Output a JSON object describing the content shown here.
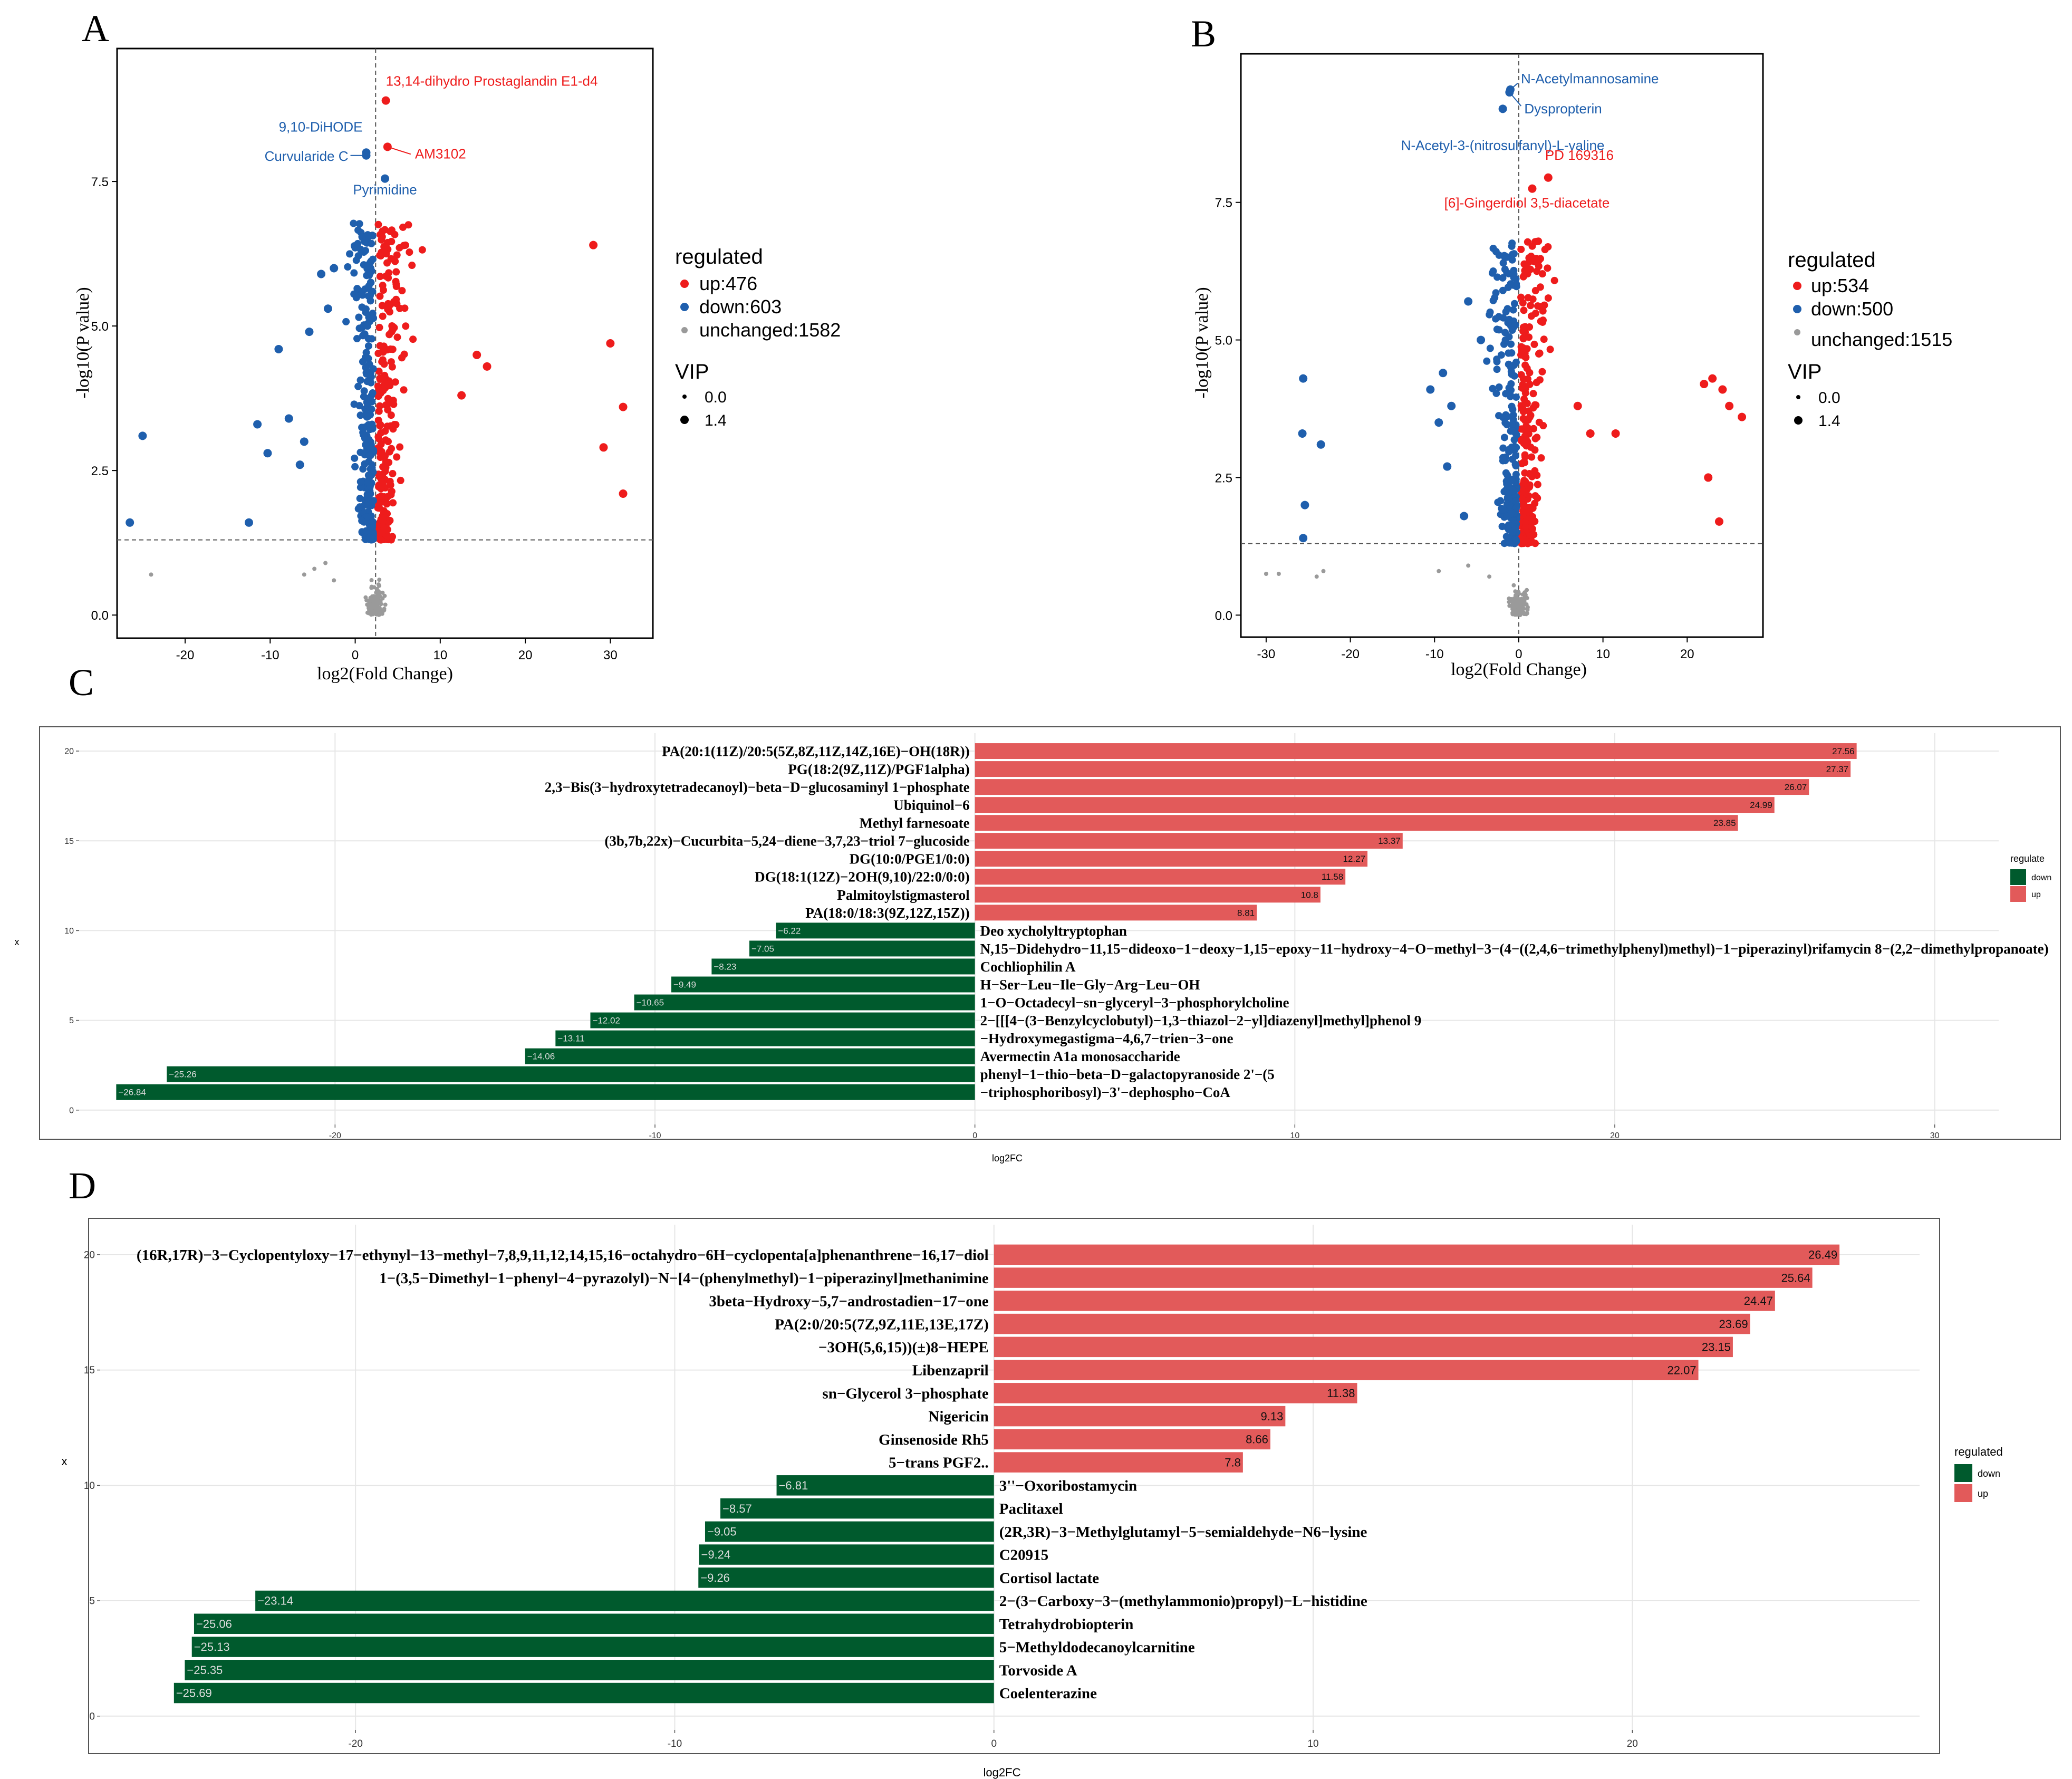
{
  "chart_data": [
    {
      "panel": "A",
      "type": "scatter",
      "xlabel": "log2(Fold Change)",
      "ylabel": "-log10(P value)",
      "xlim": [
        -28,
        35
      ],
      "ylim": [
        -0.4,
        9.8
      ],
      "xticks": [
        -20,
        -10,
        0,
        10,
        20,
        30
      ],
      "yticks": [
        0.0,
        2.5,
        5.0,
        7.5
      ],
      "ytick_labels": [
        "0.0",
        "2.5",
        "5.0",
        "7.5"
      ],
      "vline": 2.4,
      "hline": 1.3,
      "legend_title": "regulated",
      "legend_entries": [
        "up:476",
        "down:603",
        "unchanged:1582"
      ],
      "size_title": "VIP",
      "size_entries": [
        "0.0",
        "1.4"
      ],
      "colors": {
        "up": "#ee1c1c",
        "down": "#1f5fad",
        "unchanged": "#9a9a9a"
      },
      "counts": {
        "up": 476,
        "down": 603,
        "unchanged": 1582
      },
      "outliers": {
        "up": [
          [
            28.0,
            6.4
          ],
          [
            30.0,
            4.7
          ],
          [
            31.5,
            3.6
          ],
          [
            29.2,
            2.9
          ],
          [
            31.5,
            2.1
          ],
          [
            15.5,
            4.3
          ],
          [
            14.3,
            4.5
          ],
          [
            12.5,
            3.8
          ]
        ],
        "down": [
          [
            -25.0,
            3.1
          ],
          [
            -26.5,
            1.6
          ],
          [
            -12.5,
            1.6
          ],
          [
            -11.5,
            3.3
          ],
          [
            -9.0,
            4.6
          ],
          [
            -10.3,
            2.8
          ],
          [
            -7.8,
            3.4
          ],
          [
            -6.0,
            3.0
          ],
          [
            -5.4,
            4.9
          ],
          [
            -4.0,
            5.9
          ],
          [
            -3.2,
            5.3
          ],
          [
            -6.5,
            2.6
          ],
          [
            -2.5,
            6.0
          ]
        ],
        "unchanged": [
          [
            -24.0,
            0.7
          ],
          [
            -6.0,
            0.7
          ],
          [
            -4.8,
            0.8
          ],
          [
            -3.5,
            0.9
          ],
          [
            -2.5,
            0.6
          ]
        ]
      },
      "annotations": [
        {
          "label": "13,14-dihydro Prostaglandin E1-d4",
          "x": 3.6,
          "y": 8.9,
          "color": "#ee1c1c"
        },
        {
          "label": "AM3102",
          "x": 3.8,
          "y": 8.1,
          "color": "#ee1c1c"
        },
        {
          "label": "9,10-DiHODE",
          "x": 1.3,
          "y": 8.0,
          "color": "#1f5fad"
        },
        {
          "label": "Curvularide C",
          "x": 1.3,
          "y": 7.95,
          "color": "#1f5fad"
        },
        {
          "label": "Pyrimidine",
          "x": 3.5,
          "y": 7.55,
          "color": "#1f5fad"
        }
      ]
    },
    {
      "panel": "B",
      "type": "scatter",
      "xlabel": "log2(Fold Change)",
      "ylabel": "-log10(P value)",
      "xlim": [
        -33,
        29
      ],
      "ylim": [
        -0.4,
        10.2
      ],
      "xticks": [
        -30,
        -20,
        -10,
        0,
        10,
        20
      ],
      "yticks": [
        0.0,
        2.5,
        5.0,
        7.5
      ],
      "ytick_labels": [
        "0.0",
        "2.5",
        "5.0",
        "7.5"
      ],
      "vline": 0.0,
      "hline": 1.3,
      "legend_title": "regulated",
      "legend_entries": [
        "up:534",
        "down:500",
        "unchanged:1515"
      ],
      "size_title": "VIP",
      "size_entries": [
        "0.0",
        "1.4"
      ],
      "colors": {
        "up": "#ee1c1c",
        "down": "#1f5fad",
        "unchanged": "#9a9a9a"
      },
      "counts": {
        "up": 534,
        "down": 500,
        "unchanged": 1515
      },
      "outliers": {
        "up": [
          [
            22.0,
            4.2
          ],
          [
            23.0,
            4.3
          ],
          [
            24.2,
            4.1
          ],
          [
            25.0,
            3.8
          ],
          [
            26.5,
            3.6
          ],
          [
            22.5,
            2.5
          ],
          [
            23.8,
            1.7
          ],
          [
            11.5,
            3.3
          ],
          [
            8.5,
            3.3
          ],
          [
            7.0,
            3.8
          ]
        ],
        "down": [
          [
            -25.6,
            4.3
          ],
          [
            -25.7,
            3.3
          ],
          [
            -23.5,
            3.1
          ],
          [
            -25.4,
            2.0
          ],
          [
            -25.6,
            1.4
          ],
          [
            -9.0,
            4.4
          ],
          [
            -10.5,
            4.1
          ],
          [
            -9.5,
            3.5
          ],
          [
            -8.5,
            2.7
          ],
          [
            -8.0,
            3.8
          ],
          [
            -6.5,
            1.8
          ],
          [
            -6.0,
            5.7
          ],
          [
            -4.5,
            5.0
          ]
        ],
        "unchanged": [
          [
            -30.0,
            0.75
          ],
          [
            -28.5,
            0.75
          ],
          [
            -24.0,
            0.7
          ],
          [
            -23.2,
            0.8
          ],
          [
            -9.5,
            0.8
          ],
          [
            -6.0,
            0.9
          ],
          [
            -3.5,
            0.7
          ]
        ]
      },
      "annotations": [
        {
          "label": "N-Acetylmannosamine",
          "x": -1.0,
          "y": 9.55,
          "color": "#1f5fad"
        },
        {
          "label": "Dyspropterin",
          "x": -1.1,
          "y": 9.5,
          "color": "#1f5fad"
        },
        {
          "label": "N-Acetyl-3-(nitrosulfanyl)-L-valine",
          "x": -1.9,
          "y": 9.2,
          "color": "#1f5fad"
        },
        {
          "label": "PD 169316",
          "x": 3.5,
          "y": 7.95,
          "color": "#ee1c1c"
        },
        {
          "label": "[6]-Gingerdiol 3,5-diacetate",
          "x": 1.6,
          "y": 7.75,
          "color": "#ee1c1c"
        }
      ]
    },
    {
      "panel": "C",
      "type": "bar",
      "orientation": "horizontal",
      "xlabel": "log2FC",
      "ylabel": "x",
      "xlim": [
        -28,
        32
      ],
      "ylim": [
        -0.8,
        21.0
      ],
      "xticks": [
        -20,
        -10,
        0,
        10,
        20,
        30
      ],
      "yticks": [
        0,
        5,
        10,
        15,
        20
      ],
      "legend_title": "regulate",
      "legend_entries": [
        "down",
        "up"
      ],
      "colors": {
        "down": "#005a2d",
        "up": "#e25a5a"
      },
      "categories": [
        "PA(20:1(11Z)/20:5(5Z,8Z,11Z,14Z,16E)−OH(18R))",
        "PG(18:2(9Z,11Z)/PGF1alpha)",
        "2,3−Bis(3−hydroxytetradecanoyl)−beta−D−glucosaminyl 1−phosphate",
        "Ubiquinol−6",
        "Methyl farnesoate",
        "(3b,7b,22x)−Cucurbita−5,24−diene−3,7,23−triol 7−glucoside",
        "DG(10:0/PGE1/0:0)",
        "DG(18:1(12Z)−2OH(9,10)/22:0/0:0)",
        "Palmitoylstigmasterol",
        "PA(18:0/18:3(9Z,12Z,15Z))",
        "Deo xycholyltryptophan",
        "N,15−Didehydro−11,15−dideoxo−1−deoxy−1,15−epoxy−11−hydroxy−4−O−methyl−3−(4−((2,4,6−trimethylphenyl)methyl)−1−piperazinyl)rifamycin 8−(2,2−dimethylpropanoate)",
        "Cochliophilin A",
        "H−Ser−Leu−Ile−Gly−Arg−Leu−OH",
        "1−O−Octadecyl−sn−glyceryl−3−phosphorylcholine",
        "2−[[[4−(3−Benzylcyclobutyl)−1,3−thiazol−2−yl]diazenyl]methyl]phenol 9",
        "−Hydroxymegastigma−4,6,7−trien−3−one",
        "Avermectin A1a monosaccharide",
        "phenyl−1−thio−beta−D−galactopyranoside 2'−(5",
        "−triphosphoribosyl)−3'−dephospho−CoA"
      ],
      "values": [
        27.56,
        27.37,
        26.07,
        24.99,
        23.85,
        13.37,
        12.27,
        11.58,
        10.8,
        8.81,
        -6.22,
        -7.05,
        -8.23,
        -9.49,
        -10.65,
        -12.02,
        -13.11,
        -14.06,
        -25.26,
        -26.84
      ],
      "value_labels": [
        "27.56",
        "27.37",
        "26.07",
        "24.99",
        "23.85",
        "13.37",
        "12.27",
        "11.58",
        "10.8",
        "8.81",
        "−6.22",
        "−7.05",
        "−8.23",
        "−9.49",
        "−10.65",
        "−12.02",
        "−13.11",
        "−14.06",
        "−25.26",
        "−26.84"
      ]
    },
    {
      "panel": "D",
      "type": "bar",
      "orientation": "horizontal",
      "xlabel": "log2FC",
      "ylabel": "x",
      "xlim": [
        -28,
        29
      ],
      "ylim": [
        -0.6,
        21.3
      ],
      "xticks": [
        -20,
        -10,
        0,
        10,
        20
      ],
      "yticks": [
        0,
        5,
        10,
        15,
        20
      ],
      "legend_title": "regulated",
      "legend_entries": [
        "down",
        "up"
      ],
      "colors": {
        "down": "#005a2d",
        "up": "#e25a5a"
      },
      "categories": [
        "(16R,17R)−3−Cyclopentyloxy−17−ethynyl−13−methyl−7,8,9,11,12,14,15,16−octahydro−6H−cyclopenta[a]phenanthrene−16,17−diol",
        "1−(3,5−Dimethyl−1−phenyl−4−pyrazolyl)−N−[4−(phenylmethyl)−1−piperazinyl]methanimine",
        "3beta−Hydroxy−5,7−androstadien−17−one",
        "PA(2:0/20:5(7Z,9Z,11E,13E,17Z)",
        "−3OH(5,6,15))(±)8−HEPE",
        "Libenzapril",
        "sn−Glycerol 3−phosphate",
        "Nigericin",
        "Ginsenoside Rh5",
        "5−trans PGF2..",
        "3''−Oxoribostamycin",
        "Paclitaxel",
        "(2R,3R)−3−Methylglutamyl−5−semialdehyde−N6−lysine",
        "C20915",
        "Cortisol lactate",
        "2−(3−Carboxy−3−(methylammonio)propyl)−L−histidine",
        "Tetrahydrobiopterin",
        "5−Methyldodecanoylcarnitine",
        "Torvoside A",
        "Coelenterazine"
      ],
      "values": [
        26.49,
        25.64,
        24.47,
        23.69,
        23.15,
        22.07,
        11.38,
        9.13,
        8.66,
        7.8,
        -6.81,
        -8.57,
        -9.05,
        -9.24,
        -9.26,
        -23.14,
        -25.06,
        -25.13,
        -25.35,
        -25.69
      ],
      "value_labels": [
        "26.49",
        "25.64",
        "24.47",
        "23.69",
        "23.15",
        "22.07",
        "11.38",
        "9.13",
        "8.66",
        "7.8",
        "−6.81",
        "−8.57",
        "−9.05",
        "−9.24",
        "−9.26",
        "−23.14",
        "−25.06",
        "−25.13",
        "−25.35",
        "−25.69"
      ]
    }
  ],
  "panel_letters": [
    "A",
    "B",
    "C",
    "D"
  ]
}
